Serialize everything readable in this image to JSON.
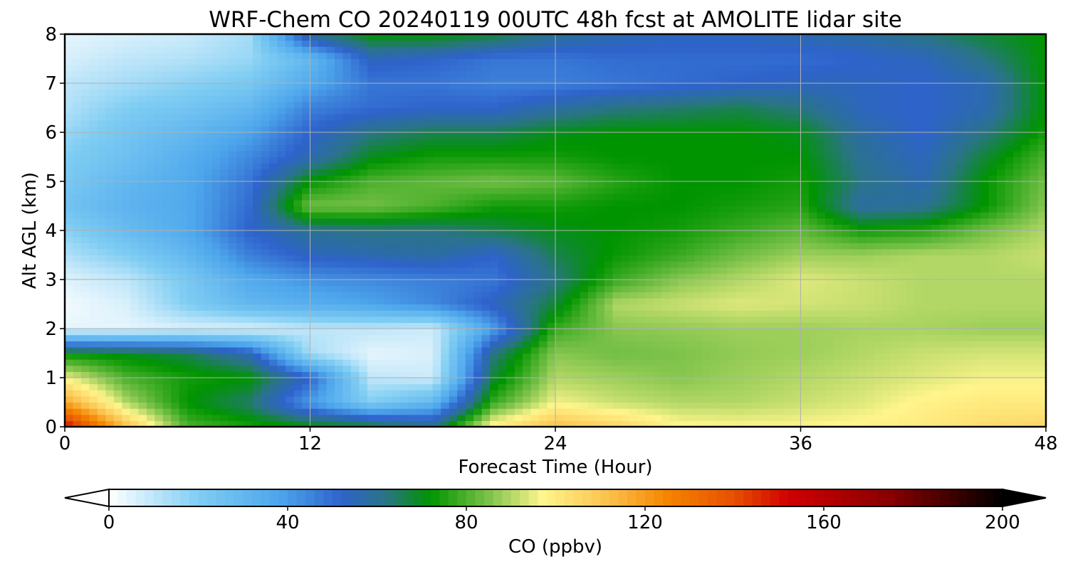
{
  "chart_data": {
    "type": "heatmap",
    "title": "WRF-Chem CO  20240119 00UTC 48h fcst at AMOLITE lidar site",
    "xlabel": "Forecast Time (Hour)",
    "ylabel": "Alt AGL (km)",
    "xlim": [
      0,
      48
    ],
    "ylim": [
      0,
      8
    ],
    "xticks": [
      "0",
      "12",
      "24",
      "36",
      "48"
    ],
    "yticks": [
      "0",
      "1",
      "2",
      "3",
      "4",
      "5",
      "6",
      "7",
      "8"
    ],
    "grid": true,
    "colorbar": {
      "label": "CO  (ppbv)",
      "ticks": [
        "0",
        "40",
        "80",
        "120",
        "160",
        "200"
      ],
      "range": [
        0,
        200
      ],
      "extend": "both",
      "stops": [
        {
          "v": 0,
          "c": "#ffffff"
        },
        {
          "v": 20,
          "c": "#7fcdf3"
        },
        {
          "v": 38,
          "c": "#4da6ec"
        },
        {
          "v": 52,
          "c": "#2e63cc"
        },
        {
          "v": 62,
          "c": "#2a7486"
        },
        {
          "v": 72,
          "c": "#009400"
        },
        {
          "v": 85,
          "c": "#7cc24a"
        },
        {
          "v": 97,
          "c": "#fff58c"
        },
        {
          "v": 112,
          "c": "#fbc04b"
        },
        {
          "v": 125,
          "c": "#f58400"
        },
        {
          "v": 140,
          "c": "#e65000"
        },
        {
          "v": 152,
          "c": "#d10000"
        },
        {
          "v": 175,
          "c": "#880000"
        },
        {
          "v": 200,
          "c": "#000000"
        }
      ]
    },
    "x": [
      0,
      3,
      6,
      9,
      12,
      15,
      18,
      21,
      24,
      27,
      30,
      33,
      36,
      39,
      42,
      45,
      48
    ],
    "y": [
      0,
      0.5,
      1,
      1.5,
      2,
      2.5,
      3,
      3.5,
      4,
      4.5,
      5,
      5.5,
      6,
      6.5,
      7,
      7.5,
      8
    ],
    "z": [
      [
        152,
        112,
        80,
        75,
        72,
        70,
        62,
        100,
        112,
        106,
        98,
        97,
        97,
        98,
        100,
        104,
        106
      ],
      [
        118,
        90,
        72,
        64,
        40,
        20,
        30,
        78,
        96,
        92,
        90,
        90,
        92,
        94,
        98,
        100,
        100
      ],
      [
        96,
        80,
        74,
        72,
        52,
        10,
        8,
        68,
        90,
        88,
        86,
        88,
        90,
        92,
        94,
        96,
        96
      ],
      [
        72,
        70,
        66,
        55,
        14,
        4,
        6,
        62,
        86,
        84,
        85,
        87,
        88,
        90,
        92,
        93,
        93
      ],
      [
        4,
        4,
        6,
        6,
        10,
        10,
        8,
        40,
        78,
        86,
        87,
        88,
        88,
        89,
        89,
        88,
        88
      ],
      [
        2,
        6,
        20,
        30,
        34,
        38,
        44,
        54,
        68,
        90,
        92,
        94,
        93,
        92,
        90,
        90,
        90
      ],
      [
        5,
        10,
        22,
        36,
        42,
        44,
        46,
        48,
        62,
        78,
        86,
        90,
        94,
        92,
        90,
        90,
        90
      ],
      [
        12,
        20,
        30,
        46,
        54,
        56,
        58,
        52,
        66,
        73,
        78,
        84,
        88,
        88,
        90,
        90,
        92
      ],
      [
        18,
        28,
        36,
        52,
        60,
        62,
        62,
        66,
        70,
        72,
        74,
        78,
        82,
        74,
        76,
        84,
        90
      ],
      [
        25,
        32,
        36,
        50,
        84,
        84,
        80,
        74,
        74,
        72,
        72,
        74,
        76,
        58,
        60,
        72,
        86
      ],
      [
        22,
        30,
        36,
        48,
        72,
        80,
        82,
        84,
        82,
        76,
        72,
        72,
        74,
        62,
        56,
        72,
        84
      ],
      [
        20,
        26,
        34,
        44,
        56,
        70,
        74,
        74,
        74,
        72,
        72,
        72,
        72,
        60,
        54,
        68,
        80
      ],
      [
        16,
        24,
        30,
        38,
        52,
        62,
        66,
        66,
        70,
        72,
        72,
        72,
        70,
        58,
        52,
        62,
        74
      ],
      [
        12,
        20,
        24,
        30,
        46,
        50,
        52,
        52,
        58,
        62,
        64,
        66,
        62,
        54,
        52,
        56,
        72
      ],
      [
        10,
        14,
        18,
        22,
        36,
        48,
        48,
        46,
        46,
        48,
        50,
        52,
        54,
        54,
        52,
        56,
        72
      ],
      [
        6,
        10,
        12,
        16,
        30,
        54,
        52,
        48,
        48,
        50,
        50,
        50,
        50,
        52,
        54,
        62,
        72
      ],
      [
        4,
        6,
        8,
        14,
        60,
        72,
        72,
        68,
        60,
        56,
        54,
        54,
        56,
        58,
        62,
        68,
        72
      ]
    ]
  }
}
